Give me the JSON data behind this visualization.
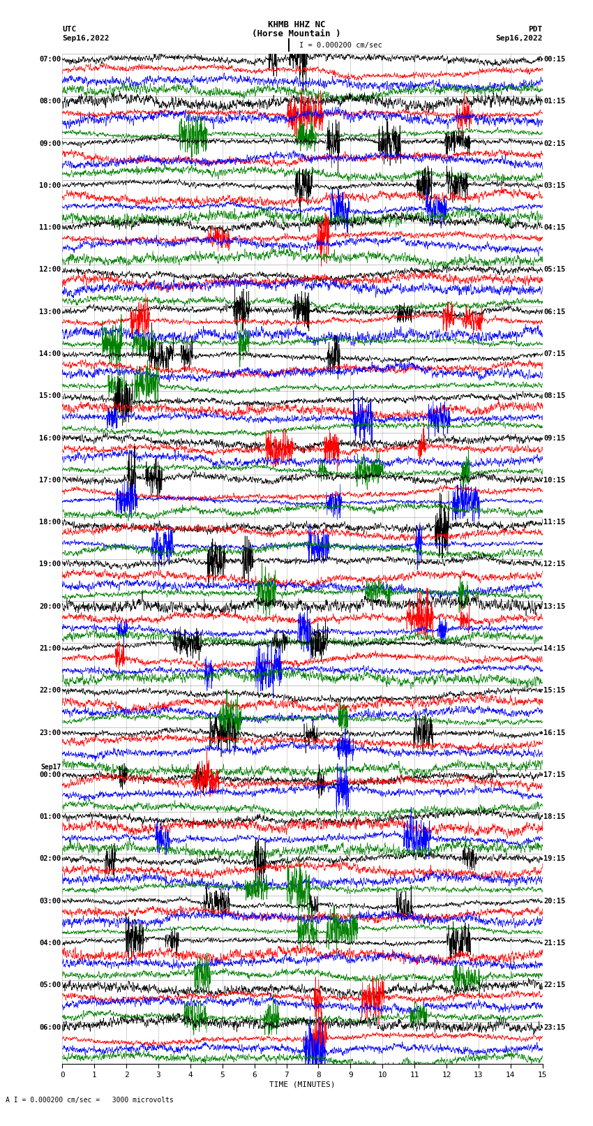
{
  "title_line1": "KHMB HHZ NC",
  "title_line2": "(Horse Mountain )",
  "scale_text": "I = 0.000200 cm/sec",
  "bottom_text": "A I = 0.000200 cm/sec =   3000 microvolts",
  "utc_label": "UTC",
  "utc_date": "Sep16,2022",
  "pdt_label": "PDT",
  "pdt_date": "Sep16,2022",
  "xlabel": "TIME (MINUTES)",
  "left_labels": [
    {
      "text": "07:00",
      "row": 0
    },
    {
      "text": "08:00",
      "row": 4
    },
    {
      "text": "09:00",
      "row": 8
    },
    {
      "text": "10:00",
      "row": 12
    },
    {
      "text": "11:00",
      "row": 16
    },
    {
      "text": "12:00",
      "row": 20
    },
    {
      "text": "13:00",
      "row": 24
    },
    {
      "text": "14:00",
      "row": 28
    },
    {
      "text": "15:00",
      "row": 32
    },
    {
      "text": "16:00",
      "row": 36
    },
    {
      "text": "17:00",
      "row": 40
    },
    {
      "text": "18:00",
      "row": 44
    },
    {
      "text": "19:00",
      "row": 48
    },
    {
      "text": "20:00",
      "row": 52
    },
    {
      "text": "21:00",
      "row": 56
    },
    {
      "text": "22:00",
      "row": 60
    },
    {
      "text": "23:00",
      "row": 64
    },
    {
      "text": "Sep17",
      "row": 68,
      "extra": true
    },
    {
      "text": "00:00",
      "row": 68
    },
    {
      "text": "01:00",
      "row": 72
    },
    {
      "text": "02:00",
      "row": 76
    },
    {
      "text": "03:00",
      "row": 80
    },
    {
      "text": "04:00",
      "row": 84
    },
    {
      "text": "05:00",
      "row": 88
    },
    {
      "text": "06:00",
      "row": 92
    }
  ],
  "right_labels": [
    {
      "text": "00:15",
      "row": 0
    },
    {
      "text": "01:15",
      "row": 4
    },
    {
      "text": "02:15",
      "row": 8
    },
    {
      "text": "03:15",
      "row": 12
    },
    {
      "text": "04:15",
      "row": 16
    },
    {
      "text": "05:15",
      "row": 20
    },
    {
      "text": "06:15",
      "row": 24
    },
    {
      "text": "07:15",
      "row": 28
    },
    {
      "text": "08:15",
      "row": 32
    },
    {
      "text": "09:15",
      "row": 36
    },
    {
      "text": "10:15",
      "row": 40
    },
    {
      "text": "11:15",
      "row": 44
    },
    {
      "text": "12:15",
      "row": 48
    },
    {
      "text": "13:15",
      "row": 52
    },
    {
      "text": "14:15",
      "row": 56
    },
    {
      "text": "15:15",
      "row": 60
    },
    {
      "text": "16:15",
      "row": 64
    },
    {
      "text": "17:15",
      "row": 68
    },
    {
      "text": "18:15",
      "row": 72
    },
    {
      "text": "19:15",
      "row": 76
    },
    {
      "text": "20:15",
      "row": 80
    },
    {
      "text": "21:15",
      "row": 84
    },
    {
      "text": "22:15",
      "row": 88
    },
    {
      "text": "23:15",
      "row": 92
    }
  ],
  "trace_colors": [
    "black",
    "red",
    "blue",
    "green"
  ],
  "n_rows": 96,
  "n_points": 2700,
  "x_min": 0,
  "x_max": 15,
  "bg_color": "white",
  "fig_width": 8.5,
  "fig_height": 16.13,
  "dpi": 100
}
